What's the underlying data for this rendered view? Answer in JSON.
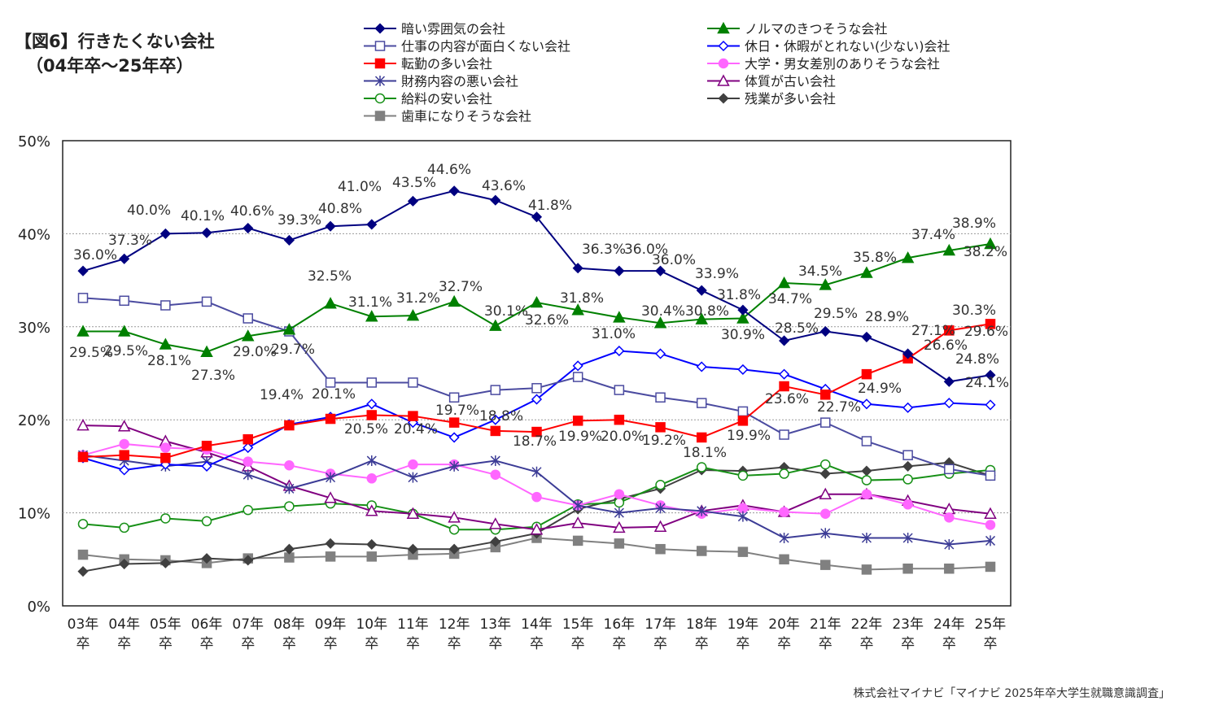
{
  "title": {
    "line1": "【図6】行きたくない会社",
    "line2": "（04年卒～25年卒）"
  },
  "source": "株式会社マイナビ「マイナビ 2025年卒大学生就職意識調査」",
  "chart_data": {
    "type": "line",
    "title": "【図6】行きたくない会社（04年卒～25年卒）",
    "xlabel": "",
    "ylabel": "",
    "ylim": [
      0,
      50
    ],
    "yticks": [
      "0%",
      "10%",
      "20%",
      "30%",
      "40%",
      "50%"
    ],
    "grid": true,
    "legend": "top",
    "categories": [
      "03年\n卒",
      "04年\n卒",
      "05年\n卒",
      "06年\n卒",
      "07年\n卒",
      "08年\n卒",
      "09年\n卒",
      "10年\n卒",
      "11年\n卒",
      "12年\n卒",
      "13年\n卒",
      "14年\n卒",
      "15年\n卒",
      "16年\n卒",
      "17年\n卒",
      "18年\n卒",
      "19年\n卒",
      "20年\n卒",
      "21年\n卒",
      "22年\n卒",
      "23年\n卒",
      "24年\n卒",
      "25年\n卒"
    ],
    "series": [
      {
        "name": "暗い雰囲気の会社",
        "color": "#000080",
        "marker": "diamond-filled",
        "labeled": true,
        "values": [
          36.0,
          37.3,
          40.0,
          40.1,
          40.6,
          39.3,
          40.8,
          41.0,
          43.5,
          44.6,
          43.6,
          41.8,
          36.3,
          36.0,
          36.0,
          33.9,
          31.8,
          28.5,
          29.5,
          28.9,
          27.1,
          24.1,
          24.8
        ]
      },
      {
        "name": "仕事の内容が面白くない会社",
        "color": "#4b4ba0",
        "marker": "square-open",
        "labeled": false,
        "values": [
          33.1,
          32.8,
          32.3,
          32.7,
          30.9,
          29.5,
          24.0,
          24.0,
          24.0,
          22.4,
          23.2,
          23.4,
          24.6,
          23.2,
          22.4,
          21.8,
          20.9,
          18.4,
          19.7,
          17.7,
          16.2,
          14.7,
          14.0
        ]
      },
      {
        "name": "転勤の多い会社",
        "color": "#ff0000",
        "marker": "square-filled",
        "labeled": true,
        "values": [
          16.0,
          16.2,
          15.9,
          17.2,
          17.9,
          19.4,
          20.1,
          20.5,
          20.4,
          19.7,
          18.8,
          18.7,
          19.9,
          20.0,
          19.2,
          18.1,
          19.9,
          23.6,
          22.7,
          24.9,
          26.6,
          29.6,
          30.3
        ]
      },
      {
        "name": "財務内容の悪い会社",
        "color": "#3c3c96",
        "marker": "asterisk",
        "labeled": false,
        "values": [
          16.2,
          15.6,
          15.0,
          15.5,
          14.1,
          12.6,
          13.8,
          15.6,
          13.8,
          15.0,
          15.6,
          14.4,
          10.8,
          10.0,
          10.5,
          10.2,
          9.6,
          7.3,
          7.8,
          7.3,
          7.3,
          6.6,
          7.0
        ]
      },
      {
        "name": "給料の安い会社",
        "color": "#179017",
        "marker": "circle-open",
        "labeled": false,
        "values": [
          8.8,
          8.4,
          9.4,
          9.1,
          10.3,
          10.7,
          11.0,
          10.8,
          9.9,
          8.2,
          8.2,
          8.5,
          10.9,
          11.1,
          13.0,
          14.9,
          14.0,
          14.2,
          15.2,
          13.5,
          13.6,
          14.2,
          14.6
        ]
      },
      {
        "name": "歯車になりそうな会社",
        "color": "#808080",
        "marker": "square-filled",
        "labeled": false,
        "values": [
          5.5,
          5.0,
          4.9,
          4.6,
          5.1,
          5.2,
          5.3,
          5.3,
          5.5,
          5.6,
          6.3,
          7.3,
          7.0,
          6.7,
          6.1,
          5.9,
          5.8,
          5.0,
          4.4,
          3.9,
          4.0,
          4.0,
          4.2
        ]
      },
      {
        "name": "ノルマのきつそうな会社",
        "color": "#008000",
        "marker": "triangle-filled",
        "labeled": true,
        "values": [
          29.5,
          29.5,
          28.1,
          27.3,
          29.0,
          29.7,
          32.5,
          31.1,
          31.2,
          32.7,
          30.1,
          32.6,
          31.8,
          31.0,
          30.4,
          30.8,
          30.9,
          34.7,
          34.5,
          35.8,
          37.4,
          38.2,
          38.9
        ]
      },
      {
        "name": "休日・休暇がとれない(少ない)会社",
        "color": "#0000ff",
        "marker": "diamond-open",
        "labeled": false,
        "values": [
          15.9,
          14.6,
          15.2,
          15.0,
          17.0,
          19.5,
          20.3,
          21.7,
          19.7,
          18.1,
          20.0,
          22.2,
          25.8,
          27.4,
          27.1,
          25.7,
          25.4,
          24.9,
          23.3,
          21.7,
          21.3,
          21.8,
          21.6
        ]
      },
      {
        "name": "大学・男女差別のありそうな会社",
        "color": "#ff66ff",
        "marker": "circle-filled",
        "labeled": false,
        "values": [
          16.2,
          17.4,
          17.0,
          16.8,
          15.5,
          15.1,
          14.2,
          13.7,
          15.2,
          15.2,
          14.1,
          11.7,
          10.8,
          12.0,
          10.8,
          9.9,
          10.5,
          10.1,
          9.9,
          12.0,
          10.9,
          9.5,
          8.7
        ]
      },
      {
        "name": "体質が古い会社",
        "color": "#800080",
        "marker": "triangle-open",
        "labeled": false,
        "values": [
          19.4,
          19.3,
          17.7,
          16.5,
          15.0,
          12.9,
          11.6,
          10.2,
          9.9,
          9.5,
          8.8,
          8.2,
          8.9,
          8.4,
          8.5,
          10.2,
          10.8,
          10.1,
          12.0,
          12.0,
          11.3,
          10.4,
          9.9
        ]
      },
      {
        "name": "残業が多い会社",
        "color": "#404040",
        "marker": "diamond-filled",
        "labeled": false,
        "values": [
          3.7,
          4.5,
          4.6,
          5.1,
          4.9,
          6.1,
          6.7,
          6.6,
          6.1,
          6.1,
          6.9,
          7.8,
          10.4,
          11.5,
          12.6,
          14.6,
          14.5,
          14.9,
          14.2,
          14.5,
          15.0,
          15.4,
          14.0
        ]
      }
    ]
  }
}
